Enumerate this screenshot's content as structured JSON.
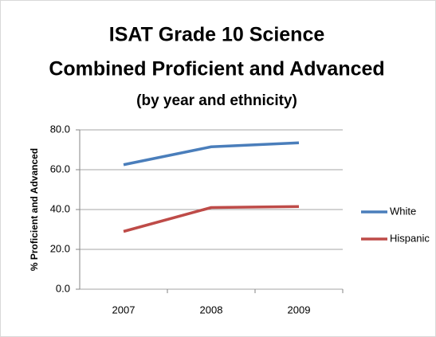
{
  "chart_data": {
    "type": "line",
    "title": "ISAT Grade 10 Science",
    "subtitle": "Combined Proficient and Advanced",
    "subtitle2": "(by year and ethnicity)",
    "y_label": "% Proficient and Advanced",
    "categories": [
      "2007",
      "2008",
      "2009"
    ],
    "series": [
      {
        "name": "White",
        "color": "#4a7ebb",
        "values": [
          62.5,
          71.5,
          73.5
        ]
      },
      {
        "name": "Hispanic",
        "color": "#be4b48",
        "values": [
          29,
          41,
          41.5
        ]
      }
    ],
    "ylim": [
      0,
      80
    ],
    "yticks": [
      {
        "value": 0,
        "label": "0.0"
      },
      {
        "value": 20,
        "label": "20.0"
      },
      {
        "value": 40,
        "label": "40.0"
      },
      {
        "value": 60,
        "label": "60.0"
      },
      {
        "value": 80,
        "label": "80.0"
      }
    ],
    "grid": true,
    "legend": "right"
  }
}
